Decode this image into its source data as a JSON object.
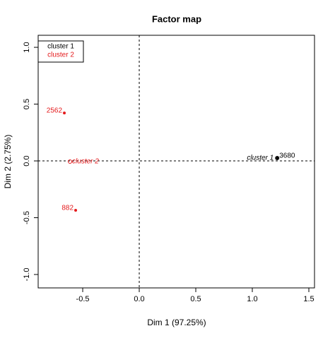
{
  "chart_data": {
    "type": "scatter",
    "title": "Factor map",
    "xlabel": "Dim 1 (97.25%)",
    "ylabel": "Dim 2 (2.75%)",
    "xlim": [
      -0.894,
      1.55
    ],
    "ylim": [
      -1.118,
      1.106
    ],
    "xticks": [
      -0.5,
      {
        "value": 0,
        "label": "0.0"
      },
      0.5,
      {
        "value": 1,
        "label": "1.0"
      },
      1.5
    ],
    "yticks": [
      {
        "value": -1,
        "label": "-1.0"
      },
      -0.5,
      {
        "value": 0,
        "label": "0.0"
      },
      0.5,
      {
        "value": 1,
        "label": "1.0"
      }
    ],
    "origin_lines": true,
    "legend": "top-left",
    "series": [
      {
        "name": "cluster 1",
        "color": "#000000",
        "labels": [
          "3680"
        ],
        "x": [
          1.22
        ],
        "y": [
          0.025
        ],
        "center_x": 1.22,
        "center_y": 0.025
      },
      {
        "name": "cluster 2",
        "color": "#e41a1c",
        "labels": [
          "2562",
          "882"
        ],
        "x": [
          -0.6625,
          -0.5625
        ],
        "y": [
          0.422,
          -0.435
        ],
        "center_x": -0.6125,
        "center_y": -0.006
      }
    ]
  }
}
